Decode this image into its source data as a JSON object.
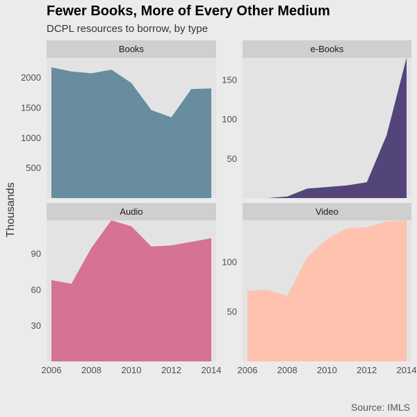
{
  "title": "Fewer Books, More of Every Other Medium",
  "subtitle": "DCPL resources to borrow, by type",
  "caption": "Source: IMLS",
  "chart_data": {
    "type": "area",
    "ylabel": "Thousands",
    "xlabel": "",
    "x": [
      2006,
      2007,
      2008,
      2009,
      2010,
      2011,
      2012,
      2013,
      2014
    ],
    "x_ticks": [
      2006,
      2008,
      2010,
      2012,
      2014
    ],
    "panels": [
      {
        "name": "Books",
        "color": "#678d9e",
        "values": [
          2170,
          2100,
          2070,
          2130,
          1910,
          1460,
          1340,
          1810,
          1820
        ],
        "ylim": [
          0,
          2330
        ],
        "y_ticks": [
          500,
          1000,
          1500,
          2000
        ]
      },
      {
        "name": "e-Books",
        "color": "#53457a",
        "values": [
          0,
          0,
          2,
          12,
          14,
          16,
          20,
          80,
          178
        ],
        "ylim": [
          0,
          178
        ],
        "y_ticks": [
          50,
          100,
          150
        ]
      },
      {
        "name": "Audio",
        "color": "#d67293",
        "values": [
          68,
          65,
          95,
          118,
          113,
          96,
          97,
          100,
          103
        ],
        "ylim": [
          0,
          118
        ],
        "y_ticks": [
          30,
          60,
          90
        ]
      },
      {
        "name": "Video",
        "color": "#ffc2ae",
        "values": [
          71,
          72,
          66,
          105,
          123,
          134,
          135,
          141,
          142
        ],
        "ylim": [
          0,
          142
        ],
        "y_ticks": [
          50,
          100
        ]
      }
    ]
  }
}
